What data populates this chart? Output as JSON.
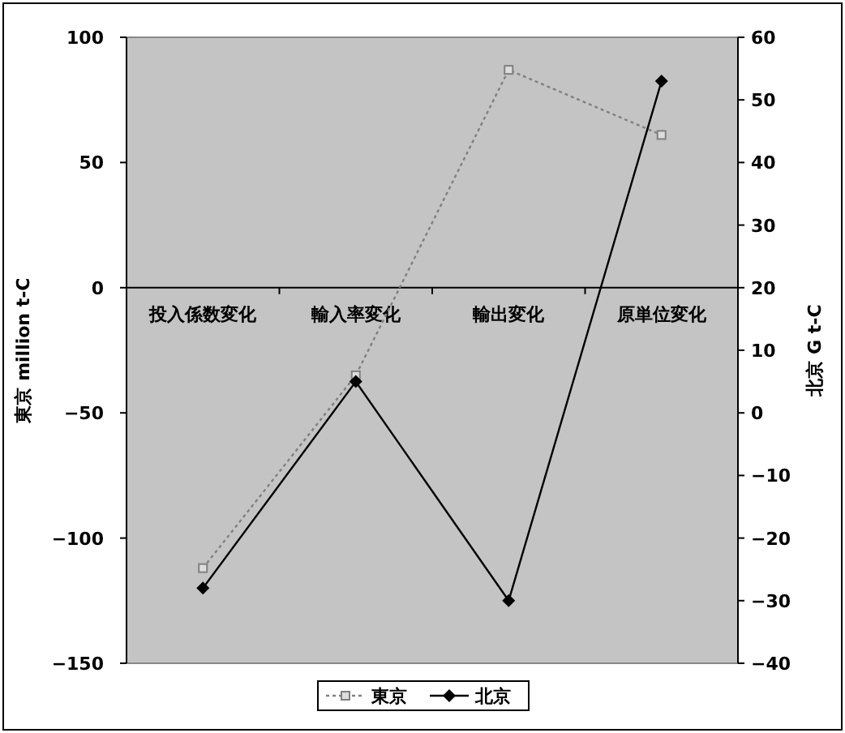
{
  "chart_data": {
    "type": "line",
    "categories": [
      "投入係数変化",
      "輸入率変化",
      "輸出変化",
      "原単位変化"
    ],
    "ylabel": "東京 million t-C",
    "y2label": "北京 G t-C",
    "ylim": [
      -150,
      100
    ],
    "yticks": [
      -150,
      -100,
      -50,
      0,
      50,
      100
    ],
    "y2lim": [
      -40,
      60
    ],
    "y2ticks": [
      -40,
      -30,
      -20,
      -10,
      0,
      10,
      20,
      30,
      40,
      50,
      60
    ],
    "legend": "bottom",
    "series": [
      {
        "name": "東京",
        "color": "#808080",
        "values": [
          -112,
          -35,
          87,
          61
        ],
        "marker": "square",
        "line_style": "dotted"
      },
      {
        "name": "北京",
        "color": "#000000",
        "values": [
          -28,
          5,
          -30,
          53
        ],
        "marker": "diamond",
        "line_style": "solid",
        "axis": "y2"
      }
    ]
  }
}
